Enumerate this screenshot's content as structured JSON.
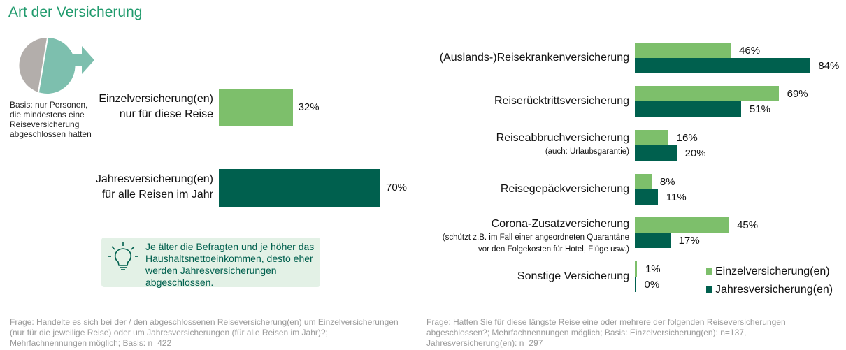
{
  "title": "Art der Versicherung",
  "colors": {
    "einzel": "#7dbf6b",
    "jahres": "#00604e",
    "title": "#1f9a6c",
    "pie_grey": "#b3aeab",
    "pie_teal": "#7dbfae",
    "tip_bg": "#e3f1e6"
  },
  "basis_note": [
    "Basis: nur Personen,",
    "die mindestens eine",
    "Reiseversicherung",
    "abgeschlossen hatten"
  ],
  "tip": {
    "icon": "lightbulb-icon",
    "text": "Je älter die Befragten und je höher das Haushaltsnettoeinkommen, desto eher werden Jahresversicherungen abgeschlossen."
  },
  "chart_data": [
    {
      "type": "bar",
      "orientation": "horizontal",
      "categories": [
        [
          "Einzelversicherung(en)",
          "nur für diese Reise"
        ],
        [
          "Jahresversicherung(en)",
          "für alle Reisen im Jahr"
        ]
      ],
      "values": [
        32,
        70
      ],
      "value_labels": [
        "32%",
        "70%"
      ],
      "unit": "%"
    },
    {
      "type": "bar",
      "orientation": "horizontal",
      "categories": [
        {
          "label": "(Auslands-)Reisekrankenversicherung",
          "sub": []
        },
        {
          "label": "Reiserücktrittsversicherung",
          "sub": []
        },
        {
          "label": "Reiseabbruchversicherung",
          "sub": [
            "(auch: Urlaubsgarantie)"
          ]
        },
        {
          "label": "Reisegepäckversicherung",
          "sub": []
        },
        {
          "label": "Corona-Zusatzversicherung",
          "sub": [
            "(schützt z.B. im Fall einer angeordneten Quarantäne",
            "vor den Folgekosten für Hotel, Flüge usw.)"
          ]
        },
        {
          "label": "Sonstige Versicherung",
          "sub": []
        }
      ],
      "series": [
        {
          "name": "Einzelversicherung(en)",
          "values": [
            46,
            69,
            16,
            8,
            45,
            1
          ]
        },
        {
          "name": "Jahresversicherung(en)",
          "values": [
            84,
            51,
            20,
            11,
            17,
            0
          ]
        }
      ],
      "unit": "%",
      "legend": "bottom-right"
    }
  ],
  "footnotes": {
    "left": [
      "Frage: Handelte es sich bei der / den abgeschlossenen Reiseversicherung(en) um Einzelversicherungen",
      "(nur für die jeweilige Reise) oder um Jahresversicherungen (für alle Reisen im Jahr)?;",
      "Mehrfachnennungen möglich; Basis: n=422"
    ],
    "right": [
      "Frage: Hatten Sie für diese längste Reise eine oder mehrere der folgenden Reiseversicherungen",
      "abgeschlossen?; Mehrfachnennungen möglich; Basis: Einzelversicherung(en): n=137,",
      "Jahresversicherung(en): n=297"
    ]
  }
}
